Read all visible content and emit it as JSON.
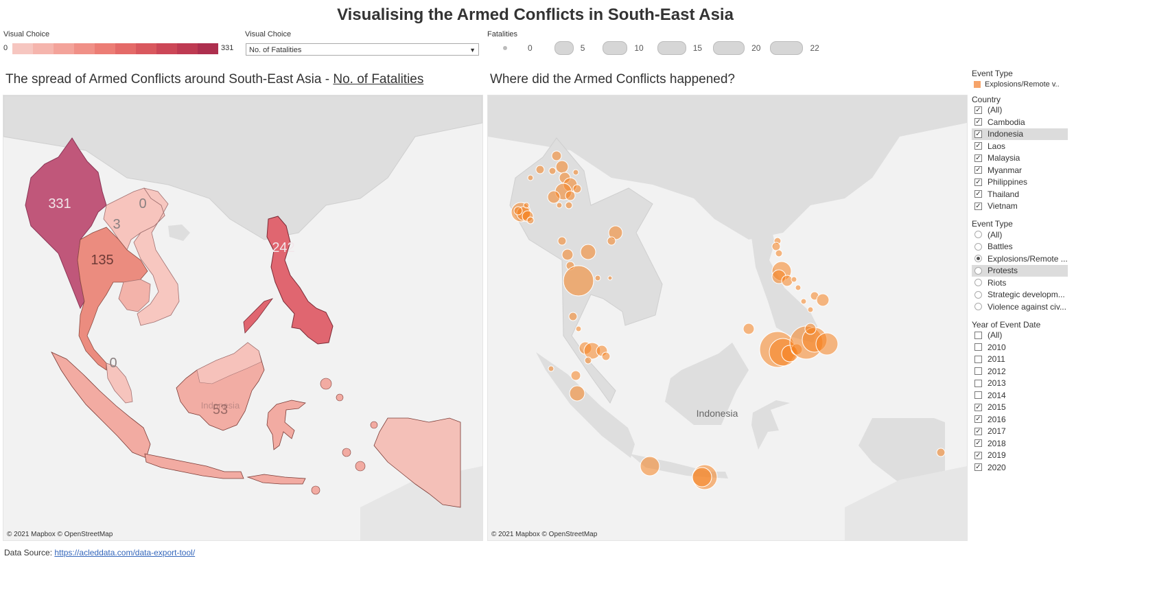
{
  "title": "Visualising the Armed Conflicts in South-East Asia",
  "controls": {
    "color_legend": {
      "label": "Visual Choice",
      "min": "0",
      "max": "331",
      "colors": [
        "#f6c6c0",
        "#f5b5ad",
        "#f3a39a",
        "#f09087",
        "#ec7d75",
        "#e46a68",
        "#d9585e",
        "#cc4757",
        "#be3a52",
        "#ad2f4e"
      ]
    },
    "measure_select": {
      "label": "Visual Choice",
      "value": "No. of Fatalities"
    },
    "size_legend": {
      "label": "Fatalities",
      "values": [
        "0",
        "5",
        "10",
        "15",
        "20",
        "22"
      ]
    }
  },
  "left_sheet": {
    "title_prefix": "The spread of Armed Conflicts around South-East Asia - ",
    "title_link": "No. of Fatalities",
    "attribution": "© 2021 Mapbox © OpenStreetMap",
    "country_label": "Indonesia",
    "values": {
      "myanmar": "331",
      "thailand": "135",
      "laos": "3",
      "vietnam": "0",
      "malaysia": "0",
      "philippines": "242",
      "indonesia": "53"
    }
  },
  "right_sheet": {
    "title": "Where did the Armed Conflicts happened?",
    "attribution": "© 2021 Mapbox © OpenStreetMap",
    "country_label": "Indonesia"
  },
  "filters": {
    "event_type_legend": {
      "title": "Event Type",
      "item": "Explosions/Remote v..",
      "color": "#f6a46a"
    },
    "country": {
      "title": "Country",
      "items": [
        {
          "label": "(All)",
          "checked": true
        },
        {
          "label": "Cambodia",
          "checked": true
        },
        {
          "label": "Indonesia",
          "checked": true
        },
        {
          "label": "Laos",
          "checked": true
        },
        {
          "label": "Malaysia",
          "checked": true
        },
        {
          "label": "Myanmar",
          "checked": true
        },
        {
          "label": "Philippines",
          "checked": true
        },
        {
          "label": "Thailand",
          "checked": true
        },
        {
          "label": "Vietnam",
          "checked": true
        }
      ]
    },
    "event_type": {
      "title": "Event Type",
      "items": [
        {
          "label": "(All)",
          "selected": false
        },
        {
          "label": "Battles",
          "selected": false
        },
        {
          "label": "Explosions/Remote ...",
          "selected": true
        },
        {
          "label": "Protests",
          "selected": false
        },
        {
          "label": "Riots",
          "selected": false
        },
        {
          "label": "Strategic developm...",
          "selected": false
        },
        {
          "label": "Violence against civ...",
          "selected": false
        }
      ]
    },
    "year": {
      "title": "Year of Event Date",
      "items": [
        {
          "label": "(All)",
          "checked": false
        },
        {
          "label": "2010",
          "checked": false
        },
        {
          "label": "2011",
          "checked": false
        },
        {
          "label": "2012",
          "checked": false
        },
        {
          "label": "2013",
          "checked": false
        },
        {
          "label": "2014",
          "checked": false
        },
        {
          "label": "2015",
          "checked": true
        },
        {
          "label": "2016",
          "checked": true
        },
        {
          "label": "2017",
          "checked": true
        },
        {
          "label": "2018",
          "checked": true
        },
        {
          "label": "2019",
          "checked": true
        },
        {
          "label": "2020",
          "checked": true
        }
      ]
    }
  },
  "footer": {
    "label": "Data Source: ",
    "link": "https://acleddata.com/data-export-tool/"
  }
}
